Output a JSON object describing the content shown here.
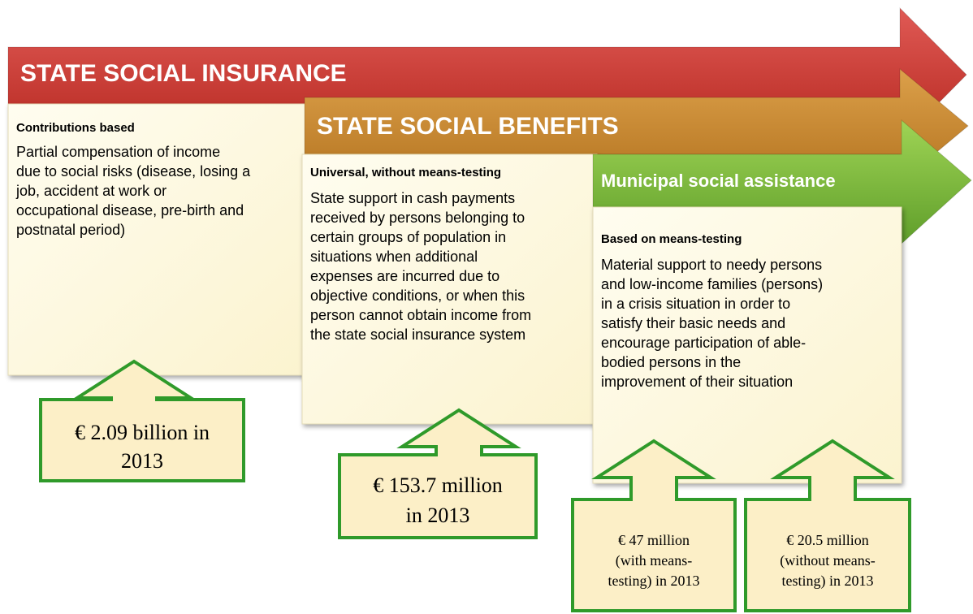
{
  "arrows": [
    {
      "title": "STATE SOCIAL INSURANCE"
    },
    {
      "title": "STATE SOCIAL BENEFITS"
    },
    {
      "title": "Municipal social assistance"
    }
  ],
  "panels": [
    {
      "heading": "Contributions based",
      "lines": [
        "Partial compensation of income",
        "due to social risks (disease, losing a",
        "job, accident at work or",
        "occupational disease, pre-birth and",
        "postnatal period)"
      ]
    },
    {
      "heading": "Universal, without means-testing",
      "lines": [
        "State support in cash payments",
        "received by persons belonging to",
        "certain groups of population in",
        "situations when additional",
        "expenses are incurred due to",
        "objective conditions, or when this",
        "person cannot obtain income from",
        "the state social insurance system"
      ]
    },
    {
      "heading": "Based on means-testing",
      "lines": [
        "Material support to needy persons",
        "and low-income families (persons)",
        "in a crisis situation in order to",
        "satisfy their basic needs and",
        "encourage participation of able-",
        "bodied persons in the",
        "improvement of their situation"
      ]
    }
  ],
  "callouts": [
    {
      "lines": [
        "€ 2.09 billion in",
        "2013"
      ]
    },
    {
      "lines": [
        "€ 153.7 million",
        "in 2013"
      ]
    },
    {
      "lines": [
        "€ 47 million",
        "(with means-",
        "testing) in 2013"
      ]
    },
    {
      "lines": [
        "€ 20.5 million",
        "(without means-",
        "testing) in 2013"
      ]
    }
  ]
}
